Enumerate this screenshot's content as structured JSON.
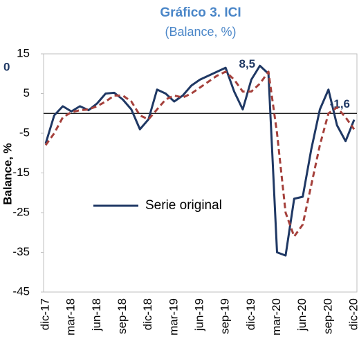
{
  "chart_data": {
    "type": "line",
    "title": "Gráfico 3. ICI",
    "subtitle": "(Balance, %)",
    "y_label": "Balance, %",
    "annotations": [
      "0"
    ],
    "categories": [
      "dic-17",
      null,
      null,
      "mar-18",
      null,
      null,
      "jun-18",
      null,
      null,
      "sep-18",
      null,
      null,
      "dic-18",
      null,
      null,
      "mar-19",
      null,
      null,
      "jun-19",
      null,
      null,
      "sep-19",
      null,
      null,
      "dic-19",
      null,
      null,
      "mar-20",
      null,
      null,
      "jun-20",
      null,
      null,
      "sep-20",
      null,
      null,
      "dic-20"
    ],
    "series": [
      {
        "name": "Serie original",
        "color": "#1f3864",
        "dash": false,
        "values": [
          -7.6,
          -0.5,
          1.8,
          0.5,
          1.8,
          0.8,
          2.5,
          5,
          5.2,
          3.5,
          1,
          -4,
          -1.5,
          6,
          5,
          3,
          4.5,
          7,
          8.5,
          9.5,
          10.5,
          11.5,
          5.5,
          1,
          8.5,
          12,
          10,
          -35,
          -35.8,
          -21.5,
          -21,
          -9,
          1,
          6,
          -3,
          -7,
          -1.6
        ],
        "value_labels": [
          null,
          null,
          null,
          null,
          null,
          null,
          null,
          null,
          null,
          null,
          null,
          null,
          null,
          null,
          null,
          null,
          null,
          null,
          null,
          null,
          null,
          null,
          null,
          null,
          "8,5",
          null,
          null,
          null,
          null,
          null,
          null,
          null,
          null,
          null,
          null,
          null,
          "-1,6"
        ]
      },
      {
        "color": "#a5403b",
        "dash": true,
        "values": [
          -8,
          -5,
          -1,
          0.3,
          0.8,
          1,
          1.8,
          3,
          4.5,
          4.5,
          3,
          -0.5,
          -1.5,
          1,
          3.5,
          4.5,
          4,
          5,
          6.5,
          8,
          9.5,
          10.5,
          8.5,
          5.5,
          5.5,
          7.5,
          10.5,
          -5,
          -25,
          -31,
          -28,
          -18,
          -8,
          0,
          1.5,
          -1,
          -4
        ]
      }
    ],
    "ylim": [
      -45,
      15
    ],
    "yticks": [
      15,
      5,
      -5,
      -15,
      -25,
      -35,
      -45
    ],
    "zero_line": true,
    "legend": "center-left"
  }
}
